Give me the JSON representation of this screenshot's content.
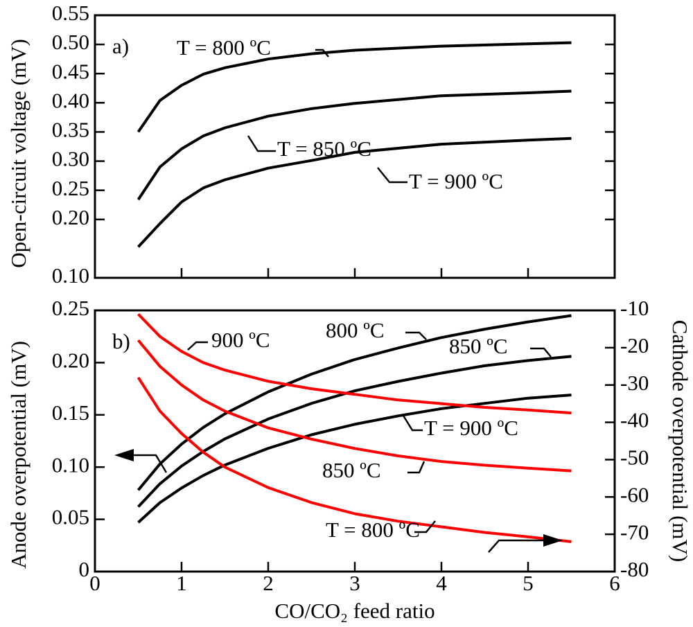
{
  "chart_data": [
    {
      "type": "line",
      "label": "a)",
      "ylabel": "Open-circuit voltage (mV)",
      "x": [
        0.5,
        0.75,
        1,
        1.25,
        1.5,
        2,
        2.5,
        3,
        4,
        5,
        5.5
      ],
      "xlim": [
        0,
        6
      ],
      "ylim": [
        0.1,
        0.55
      ],
      "yticks": [
        {
          "value": 0.1,
          "label": "0.10"
        },
        {
          "value": 0.2,
          "label": "0.20"
        },
        0.25,
        {
          "value": 0.3,
          "label": "0.30"
        },
        0.35,
        {
          "value": 0.4,
          "label": "0.40"
        },
        0.45,
        {
          "value": 0.5,
          "label": "0.50"
        },
        0.55
      ],
      "series": [
        {
          "name": "T = 800 ºC",
          "color": "#000000",
          "values": [
            0.35,
            0.404,
            0.43,
            0.449,
            0.46,
            0.475,
            0.484,
            0.49,
            0.497,
            0.501,
            0.503
          ]
        },
        {
          "name": "T = 850 ºC",
          "color": "#000000",
          "values": [
            0.234,
            0.29,
            0.321,
            0.343,
            0.357,
            0.377,
            0.39,
            0.399,
            0.412,
            0.417,
            0.42
          ]
        },
        {
          "name": "T = 900 ºC",
          "color": "#000000",
          "values": [
            0.153,
            0.193,
            0.23,
            0.254,
            0.268,
            0.288,
            0.301,
            0.315,
            0.329,
            0.336,
            0.339
          ]
        }
      ]
    },
    {
      "type": "line",
      "label": "b)",
      "ylabel": "Anode overpotential (mV)",
      "y2label": "Cathode overpotential (mV)",
      "xlabel": "CO/CO₂ feed ratio",
      "x": [
        0.5,
        0.75,
        1,
        1.25,
        1.5,
        2,
        2.5,
        3,
        3.5,
        4,
        4.5,
        5,
        5.5
      ],
      "xlim": [
        0,
        6
      ],
      "xticks": [
        0,
        1,
        2,
        3,
        4,
        5,
        6
      ],
      "ylim": [
        0,
        0.25
      ],
      "yticks": [
        0,
        0.05,
        {
          "value": 0.1,
          "label": "0.10"
        },
        0.15,
        {
          "value": 0.2,
          "label": "0.20"
        },
        0.25
      ],
      "y2lim": [
        -80,
        -10
      ],
      "y2ticks": [
        -80,
        -70,
        -60,
        -50,
        -40,
        -30,
        -20,
        -10
      ],
      "series": [
        {
          "name": "800 ºC",
          "color": "#000000",
          "values": [
            0.078,
            0.103,
            0.122,
            0.138,
            0.151,
            0.172,
            0.189,
            0.203,
            0.214,
            0.224,
            0.232,
            0.239,
            0.245
          ]
        },
        {
          "name": "850 ºC",
          "color": "#000000",
          "values": [
            0.062,
            0.084,
            0.101,
            0.115,
            0.127,
            0.146,
            0.161,
            0.173,
            0.182,
            0.19,
            0.197,
            0.202,
            0.206
          ]
        },
        {
          "name": "T = 900 ºC",
          "color": "#000000",
          "values": [
            0.047,
            0.066,
            0.08,
            0.092,
            0.102,
            0.118,
            0.131,
            0.141,
            0.149,
            0.156,
            0.161,
            0.166,
            0.169
          ]
        },
        {
          "name": "T = 800 ºC",
          "color": "#ff0000",
          "axis": "y2",
          "values": [
            -28,
            -37,
            -43,
            -48,
            -52,
            -57.5,
            -61.5,
            -64.5,
            -66.5,
            -68,
            -69.5,
            -70.7,
            -72
          ]
        },
        {
          "name": "850 ºC",
          "color": "#ff0000",
          "axis": "y2",
          "values": [
            -18,
            -25,
            -30,
            -34,
            -37,
            -41.5,
            -44.5,
            -47,
            -49,
            -50.5,
            -51.5,
            -52.3,
            -53
          ]
        },
        {
          "name": "900 ºC",
          "color": "#ff0000",
          "axis": "y2",
          "values": [
            -11,
            -17,
            -21,
            -24,
            -26,
            -29,
            -31,
            -32.5,
            -34,
            -35,
            -36,
            -36.7,
            -37.5
          ]
        }
      ]
    }
  ]
}
